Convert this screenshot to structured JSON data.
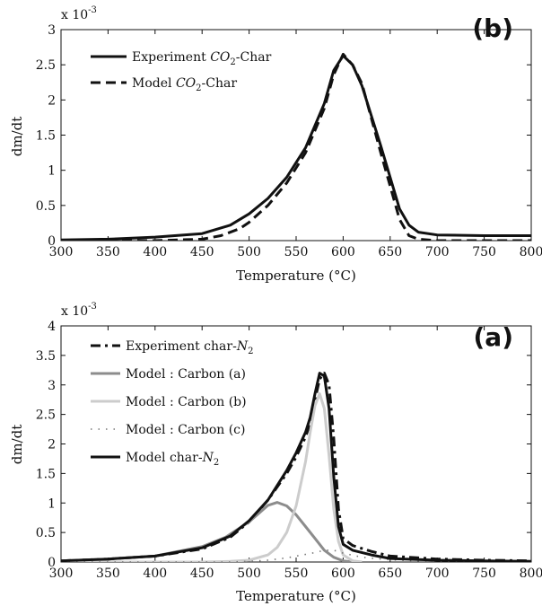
{
  "chart_data": [
    {
      "panel": "(b)",
      "type": "line",
      "xlabel": "Temperature (°C)",
      "ylabel": "dm/dt",
      "y_multiplier": "x 10",
      "y_exponent": "-3",
      "xlim": [
        300,
        800
      ],
      "ylim": [
        0,
        3
      ],
      "xticks": [
        300,
        350,
        400,
        450,
        500,
        550,
        600,
        650,
        700,
        750,
        800
      ],
      "yticks": [
        0,
        0.5,
        1,
        1.5,
        2,
        2.5,
        3
      ],
      "grid": false,
      "legend_position": "top-left",
      "series": [
        {
          "name": "Experiment CO2-Char",
          "legend_main": "Experiment ",
          "legend_italic": "CO",
          "legend_sub": "2",
          "legend_suffix": "-Char",
          "style": "solid",
          "color": "#111111",
          "x": [
            300,
            350,
            400,
            450,
            480,
            500,
            520,
            540,
            560,
            580,
            590,
            600,
            610,
            620,
            640,
            660,
            670,
            680,
            700,
            750,
            800
          ],
          "y": [
            0.01,
            0.02,
            0.05,
            0.1,
            0.22,
            0.38,
            0.6,
            0.9,
            1.32,
            1.95,
            2.42,
            2.63,
            2.5,
            2.2,
            1.35,
            0.45,
            0.22,
            0.12,
            0.08,
            0.07,
            0.07
          ]
        },
        {
          "name": "Model CO2-Char",
          "legend_main": "Model ",
          "legend_italic": "CO",
          "legend_sub": "2",
          "legend_suffix": "-Char",
          "style": "dashed",
          "color": "#111111",
          "x": [
            300,
            400,
            450,
            470,
            490,
            500,
            520,
            540,
            560,
            580,
            590,
            600,
            610,
            620,
            640,
            660,
            670,
            680,
            700,
            750,
            800
          ],
          "y": [
            0,
            0,
            0.02,
            0.07,
            0.17,
            0.26,
            0.5,
            0.82,
            1.25,
            1.88,
            2.36,
            2.65,
            2.5,
            2.23,
            1.25,
            0.3,
            0.07,
            0.02,
            0,
            0,
            0
          ]
        }
      ]
    },
    {
      "panel": "(a)",
      "type": "line",
      "xlabel": "Temperature (°C)",
      "ylabel": "dm/dt",
      "y_multiplier": "x 10",
      "y_exponent": "-3",
      "xlim": [
        300,
        800
      ],
      "ylim": [
        0,
        4
      ],
      "xticks": [
        300,
        350,
        400,
        450,
        500,
        550,
        600,
        650,
        700,
        750,
        800
      ],
      "yticks": [
        0,
        0.5,
        1,
        1.5,
        2,
        2.5,
        3,
        3.5,
        4
      ],
      "grid": false,
      "legend_position": "top-left",
      "series": [
        {
          "name": "Experiment char-N2",
          "legend_main": "Experiment char-",
          "legend_italic": "N",
          "legend_sub": "2",
          "legend_suffix": "",
          "style": "dashdot",
          "color": "#111111",
          "x": [
            300,
            350,
            400,
            450,
            480,
            500,
            520,
            540,
            550,
            560,
            565,
            570,
            575,
            580,
            585,
            590,
            595,
            600,
            610,
            630,
            650,
            700,
            750,
            800
          ],
          "y": [
            0.02,
            0.05,
            0.1,
            0.22,
            0.42,
            0.68,
            1.05,
            1.5,
            1.78,
            2.12,
            2.35,
            2.75,
            3.1,
            3.2,
            3.0,
            2.1,
            0.9,
            0.4,
            0.28,
            0.18,
            0.1,
            0.05,
            0.03,
            0.02
          ]
        },
        {
          "name": "Model : Carbon (a)",
          "legend_main": "Model : Carbon (a)",
          "legend_italic": "",
          "legend_sub": "",
          "legend_suffix": "",
          "style": "solid",
          "color": "#8c8c8c",
          "x": [
            300,
            350,
            400,
            450,
            475,
            500,
            510,
            520,
            530,
            540,
            550,
            560,
            570,
            580,
            590,
            600,
            610
          ],
          "y": [
            0.02,
            0.05,
            0.1,
            0.26,
            0.42,
            0.68,
            0.82,
            0.96,
            1.01,
            0.95,
            0.8,
            0.6,
            0.4,
            0.2,
            0.08,
            0.02,
            0
          ]
        },
        {
          "name": "Model : Carbon (b)",
          "legend_main": "Model : Carbon (b)",
          "legend_italic": "",
          "legend_sub": "",
          "legend_suffix": "",
          "style": "solid",
          "color": "#cccccc",
          "x": [
            300,
            450,
            480,
            500,
            520,
            530,
            540,
            550,
            560,
            565,
            570,
            575,
            580,
            585,
            590,
            595,
            600,
            610,
            620
          ],
          "y": [
            0,
            0,
            0.01,
            0.03,
            0.12,
            0.25,
            0.5,
            0.95,
            1.7,
            2.2,
            2.65,
            2.85,
            2.6,
            1.8,
            0.9,
            0.35,
            0.12,
            0.02,
            0
          ]
        },
        {
          "name": "Model : Carbon (c)",
          "legend_main": "Model : Carbon (c)",
          "legend_italic": "",
          "legend_sub": "",
          "legend_suffix": "",
          "style": "dotted",
          "color": "#777777",
          "x": [
            300,
            480,
            500,
            520,
            540,
            560,
            570,
            580,
            590,
            600,
            620,
            640,
            660,
            680,
            700,
            800
          ],
          "y": [
            0,
            0,
            0.01,
            0.03,
            0.07,
            0.13,
            0.16,
            0.2,
            0.2,
            0.15,
            0.08,
            0.05,
            0.03,
            0.02,
            0.01,
            0
          ]
        },
        {
          "name": "Model char-N2",
          "legend_main": "Model char-",
          "legend_italic": "N",
          "legend_sub": "2",
          "legend_suffix": "",
          "style": "solid",
          "color": "#111111",
          "x": [
            300,
            350,
            400,
            450,
            480,
            500,
            520,
            540,
            550,
            560,
            565,
            570,
            575,
            580,
            585,
            590,
            595,
            600,
            610,
            630,
            650,
            700,
            750,
            800
          ],
          "y": [
            0.02,
            0.05,
            0.1,
            0.24,
            0.44,
            0.7,
            1.05,
            1.55,
            1.85,
            2.2,
            2.45,
            2.85,
            3.2,
            3.15,
            2.6,
            1.45,
            0.6,
            0.3,
            0.2,
            0.12,
            0.06,
            0.03,
            0.02,
            0.01
          ]
        }
      ]
    }
  ]
}
